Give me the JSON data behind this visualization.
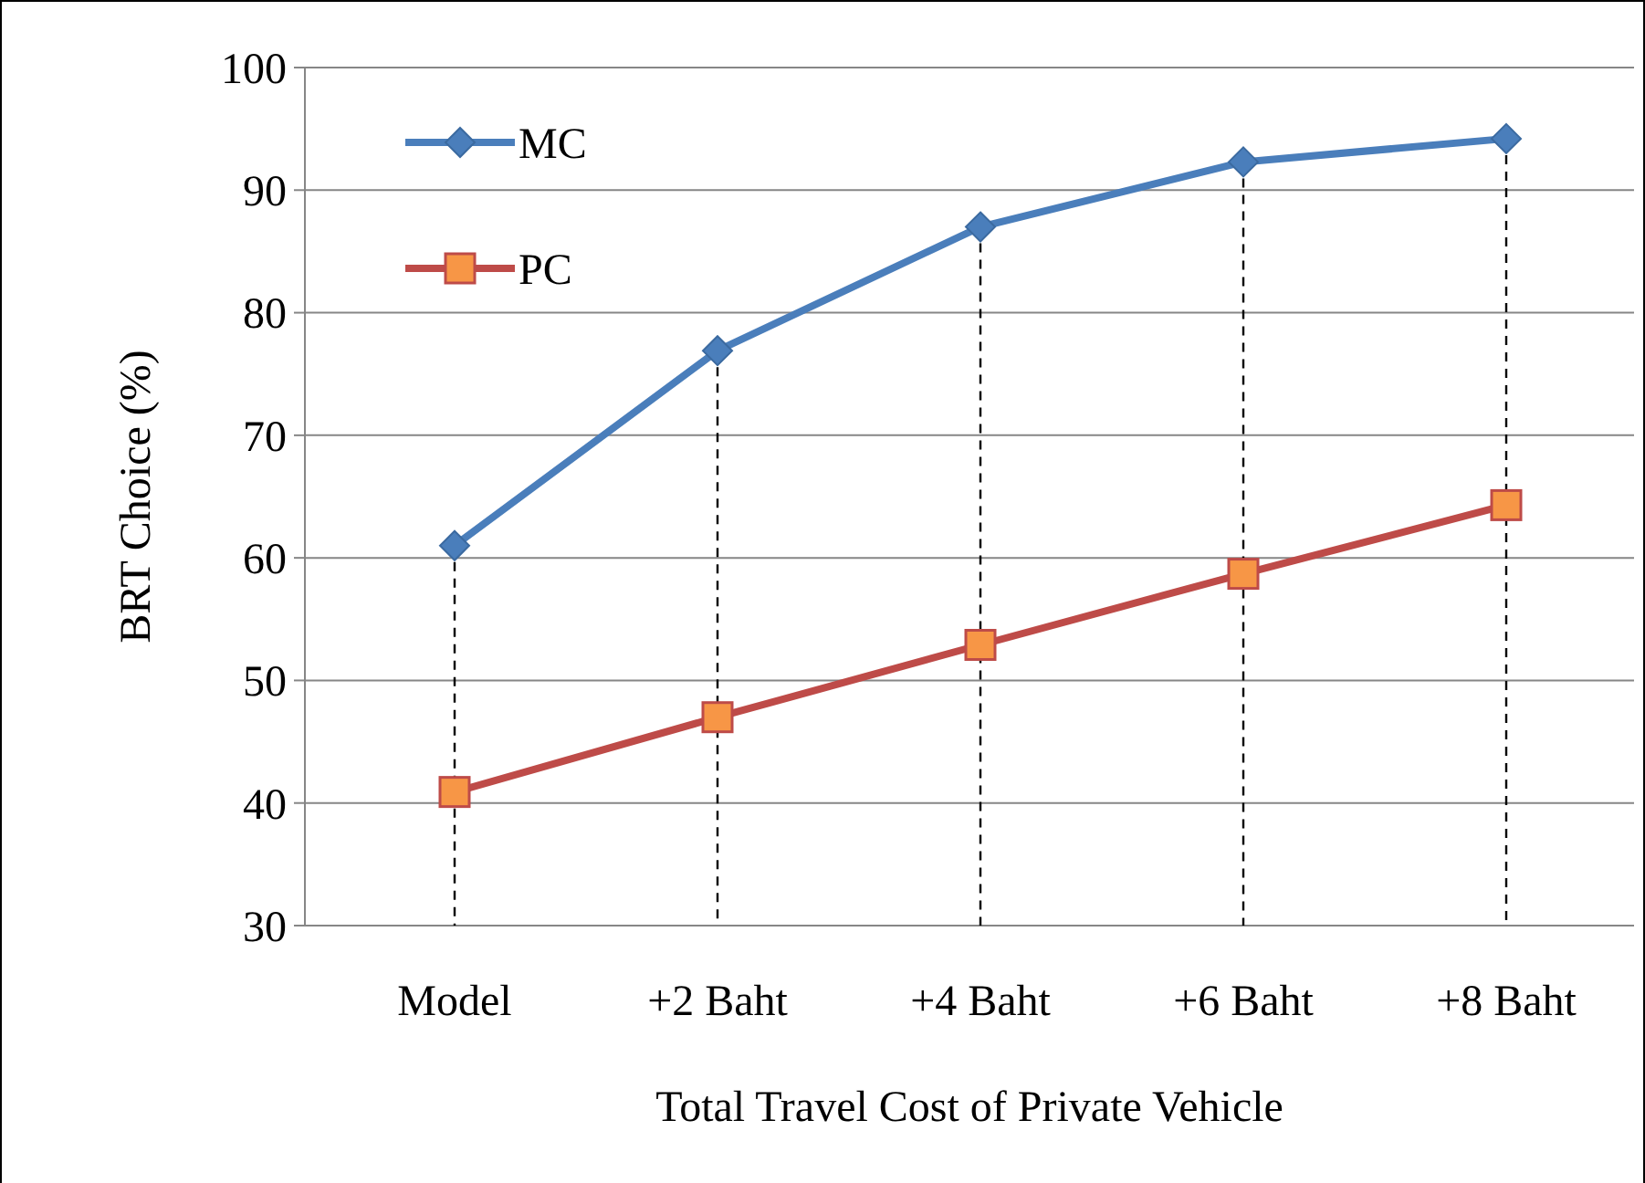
{
  "chart_data": {
    "type": "line",
    "xlabel": "Total Travel Cost of Private Vehicle",
    "ylabel": "BRT Choice (%)",
    "categories": [
      "Model",
      "+2 Baht",
      "+4 Baht",
      "+6 Baht",
      "+8 Baht"
    ],
    "series": [
      {
        "name": "MC",
        "color": "#4a7ebb",
        "marker": "diamond",
        "values": [
          61.0,
          76.9,
          87.0,
          92.3,
          94.2
        ]
      },
      {
        "name": "PC",
        "color": "#be4b48",
        "marker": "square",
        "values": [
          40.9,
          47.0,
          52.9,
          58.7,
          64.3
        ]
      }
    ],
    "ylim": [
      30,
      100
    ],
    "yticks": [
      30,
      40,
      50,
      60,
      70,
      80,
      90,
      100
    ],
    "grid": "y",
    "ref_lines": [
      {
        "axis": "x",
        "value": "Model",
        "color": "#000000",
        "line_style": "dashed"
      },
      {
        "axis": "x",
        "value": "+2 Baht",
        "color": "#000000",
        "line_style": "dashed"
      },
      {
        "axis": "x",
        "value": "+4 Baht",
        "color": "#000000",
        "line_style": "dashed"
      },
      {
        "axis": "x",
        "value": "+6 Baht",
        "color": "#000000",
        "line_style": "dashed"
      },
      {
        "axis": "x",
        "value": "+8 Baht",
        "color": "#000000",
        "line_style": "dashed"
      }
    ],
    "legend": "top left",
    "line_style": "solid"
  }
}
